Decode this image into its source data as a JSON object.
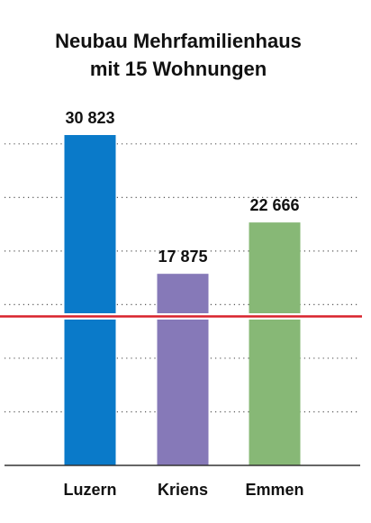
{
  "chart_data": {
    "type": "bar",
    "title": [
      "Neubau Mehrfamilienhaus",
      "mit 15 Wohnungen"
    ],
    "categories": [
      "Luzern",
      "Kriens",
      "Emmen"
    ],
    "values": [
      30823,
      17875,
      22666
    ],
    "value_labels": [
      "30 823",
      "17 875",
      "22 666"
    ],
    "colors": [
      "#0a7ac9",
      "#8679b8",
      "#87b876"
    ],
    "ylim": [
      0,
      32000
    ],
    "yticks": [
      0,
      5000,
      10000,
      15000,
      20000,
      25000,
      30000
    ],
    "grid": true,
    "reference_line": {
      "value": 13900,
      "color": "#d9222b"
    }
  }
}
